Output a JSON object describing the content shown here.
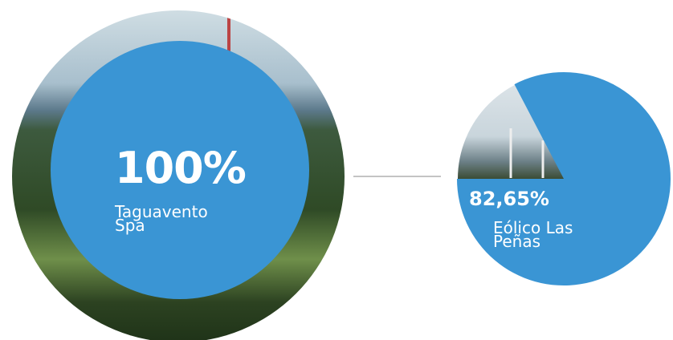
{
  "nodes": [
    {
      "percent": {
        "value": 100,
        "label": "100%"
      },
      "name": "Taguavento Spa"
    },
    {
      "percent": {
        "value": 82.65,
        "label": "82,65%"
      },
      "name": "Eólico Las Peñas"
    }
  ]
}
